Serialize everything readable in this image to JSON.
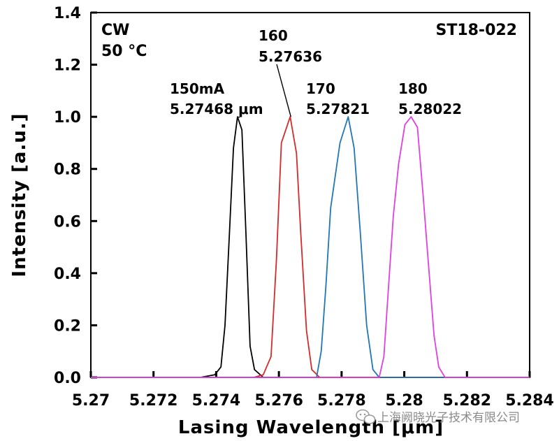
{
  "chart_data": {
    "type": "line",
    "xlabel": "Lasing Wavelength [μm]",
    "ylabel": "Intensity [a.u.]",
    "xlim": [
      5.27,
      5.284
    ],
    "ylim": [
      0,
      1.4
    ],
    "x_ticks": [
      "5.27",
      "5.272",
      "5.274",
      "5.276",
      "5.278",
      "5.28",
      "5.282",
      "5.284"
    ],
    "y_ticks": [
      "0.0",
      "0.2",
      "0.4",
      "0.6",
      "0.8",
      "1.0",
      "1.2",
      "1.4"
    ],
    "grid": false,
    "corner_labels": {
      "top_left": [
        "CW",
        "50 °C"
      ],
      "top_right": "ST18-022"
    },
    "series": [
      {
        "name": "150mA",
        "color": "#000000",
        "peak": 5.27468,
        "label_lines": [
          "150mA",
          "5.27468 μm"
        ],
        "points": [
          [
            5.27,
            0.0
          ],
          [
            5.2735,
            0.0
          ],
          [
            5.27395,
            0.01
          ],
          [
            5.27415,
            0.04
          ],
          [
            5.27428,
            0.2
          ],
          [
            5.27442,
            0.55
          ],
          [
            5.27455,
            0.88
          ],
          [
            5.27468,
            1.0
          ],
          [
            5.27482,
            0.95
          ],
          [
            5.27495,
            0.55
          ],
          [
            5.27508,
            0.12
          ],
          [
            5.27522,
            0.03
          ],
          [
            5.2755,
            0.0
          ],
          [
            5.284,
            0.0
          ]
        ]
      },
      {
        "name": "160",
        "color": "#d62a2a",
        "peak": 5.27636,
        "label_lines": [
          "160",
          "5.27636"
        ],
        "points": [
          [
            5.27,
            0.0
          ],
          [
            5.2752,
            0.0
          ],
          [
            5.2755,
            0.01
          ],
          [
            5.27575,
            0.08
          ],
          [
            5.27592,
            0.45
          ],
          [
            5.27608,
            0.9
          ],
          [
            5.27636,
            1.0
          ],
          [
            5.27656,
            0.86
          ],
          [
            5.2767,
            0.55
          ],
          [
            5.27688,
            0.18
          ],
          [
            5.27705,
            0.03
          ],
          [
            5.2773,
            0.0
          ],
          [
            5.284,
            0.0
          ]
        ]
      },
      {
        "name": "170",
        "color": "#1f77b4",
        "peak": 5.27821,
        "label_lines": [
          "170",
          "5.27821"
        ],
        "points": [
          [
            5.27,
            0.0
          ],
          [
            5.2772,
            0.0
          ],
          [
            5.27735,
            0.1
          ],
          [
            5.2775,
            0.35
          ],
          [
            5.27765,
            0.65
          ],
          [
            5.27795,
            0.9
          ],
          [
            5.27821,
            1.0
          ],
          [
            5.2784,
            0.88
          ],
          [
            5.2786,
            0.55
          ],
          [
            5.2788,
            0.2
          ],
          [
            5.279,
            0.03
          ],
          [
            5.2792,
            0.0
          ],
          [
            5.284,
            0.0
          ]
        ]
      },
      {
        "name": "180",
        "color": "#e040e0",
        "peak": 5.28022,
        "label_lines": [
          "180",
          "5.28022"
        ],
        "points": [
          [
            5.27,
            0.0
          ],
          [
            5.2792,
            0.0
          ],
          [
            5.27935,
            0.08
          ],
          [
            5.2795,
            0.35
          ],
          [
            5.27965,
            0.62
          ],
          [
            5.27982,
            0.82
          ],
          [
            5.28002,
            0.97
          ],
          [
            5.28022,
            1.0
          ],
          [
            5.28042,
            0.96
          ],
          [
            5.2806,
            0.7
          ],
          [
            5.28078,
            0.42
          ],
          [
            5.28095,
            0.16
          ],
          [
            5.2811,
            0.04
          ],
          [
            5.2813,
            0.0
          ],
          [
            5.284,
            0.0
          ]
        ]
      }
    ]
  },
  "watermark": {
    "text": "上海阙晓光子技术有限公司",
    "icon": "wechat-icon"
  }
}
